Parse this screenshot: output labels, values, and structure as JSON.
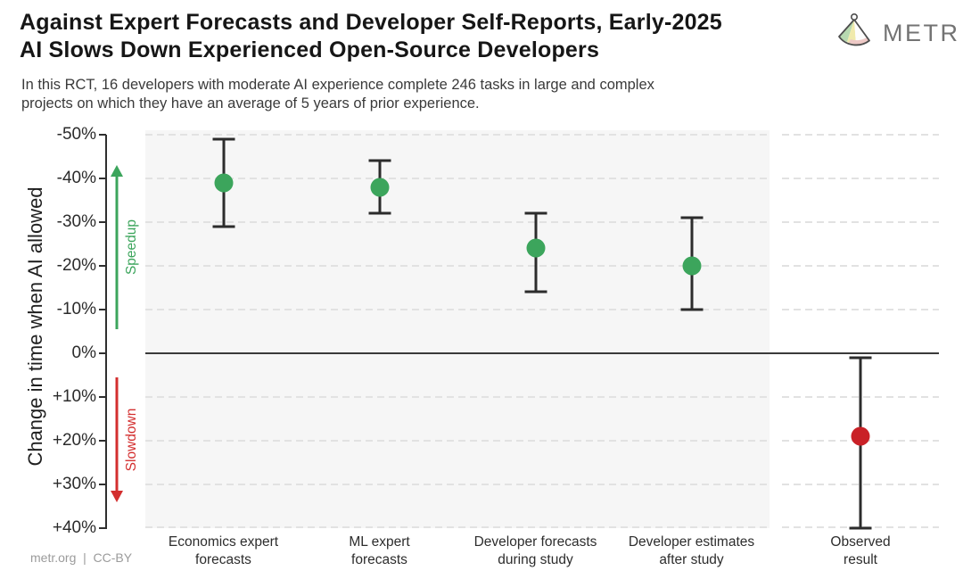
{
  "header": {
    "logo_text": "METR"
  },
  "footer": {
    "credit": "metr.org  |  CC-BY"
  },
  "chart_data": {
    "type": "scatter",
    "title": "Against Expert Forecasts and Developer Self-Reports, Early-2025 AI Slows Down Experienced Open-Source Developers",
    "title_lines": [
      "Against Expert Forecasts and Developer Self-Reports, Early-2025",
      "AI Slows Down Experienced Open-Source Developers"
    ],
    "subtitle": "In this RCT, 16 developers with moderate AI experience complete 246 tasks in large and complex projects on which they have an average of 5 years of prior experience.",
    "subtitle_lines": [
      "In this RCT, 16 developers with moderate AI experience complete 246 tasks in large and complex",
      "projects on which they have an average of 5 years of prior experience."
    ],
    "ylabel": "Change in time when AI allowed",
    "ylim_top": -50,
    "ylim_bottom": 40,
    "grid": "dashed horizontal line every 10%, solid dark line at 0%",
    "yticks": [
      {
        "value": -50,
        "label": "-50%"
      },
      {
        "value": -40,
        "label": "-40%"
      },
      {
        "value": -30,
        "label": "-30%"
      },
      {
        "value": -20,
        "label": "-20%"
      },
      {
        "value": -10,
        "label": "-10%"
      },
      {
        "value": 0,
        "label": "0%"
      },
      {
        "value": 10,
        "label": "+10%"
      },
      {
        "value": 20,
        "label": "+20%"
      },
      {
        "value": 30,
        "label": "+30%"
      },
      {
        "value": 40,
        "label": "+40%"
      }
    ],
    "annotations": {
      "speedup": {
        "label": "Speedup",
        "direction": "up",
        "color": "#3CA55C",
        "v_from": -5.5,
        "v_to": -43
      },
      "slowdown": {
        "label": "Slowdown",
        "direction": "down",
        "color": "#D32F2F",
        "v_from": 5.5,
        "v_to": 34
      }
    },
    "points": [
      {
        "label": "Economics expert forecasts",
        "label_lines": [
          "Economics expert",
          "forecasts"
        ],
        "value": -39,
        "ci_low": -49,
        "ci_high": -29,
        "color": "#3CA55C",
        "panel": "main"
      },
      {
        "label": "ML expert forecasts",
        "label_lines": [
          "ML expert",
          "forecasts"
        ],
        "value": -38,
        "ci_low": -44,
        "ci_high": -32,
        "color": "#3CA55C",
        "panel": "main"
      },
      {
        "label": "Developer forecasts during study",
        "label_lines": [
          "Developer forecasts",
          "during study"
        ],
        "value": -24,
        "ci_low": -32,
        "ci_high": -14,
        "color": "#3CA55C",
        "panel": "main"
      },
      {
        "label": "Developer estimates after study",
        "label_lines": [
          "Developer estimates",
          "after study"
        ],
        "value": -20,
        "ci_low": -31,
        "ci_high": -10,
        "color": "#3CA55C",
        "panel": "main"
      },
      {
        "label": "Observed result",
        "label_lines": [
          "Observed",
          "result"
        ],
        "value": 19,
        "ci_low": 1,
        "ci_high": 40,
        "color": "#C92127",
        "panel": "observed"
      }
    ],
    "palette": {
      "forecast_green": "#3CA55C",
      "observed_red": "#C92127",
      "errorbar": "#2C2C2C",
      "zero_line": "#3A3A3A",
      "gridline": "#E2E2E2",
      "main_panel_bg": "#F6F6F6",
      "observed_panel_bg": "#FFFFFF",
      "axis_text": "#2B2B2B",
      "logo_gray": "#737373"
    }
  }
}
